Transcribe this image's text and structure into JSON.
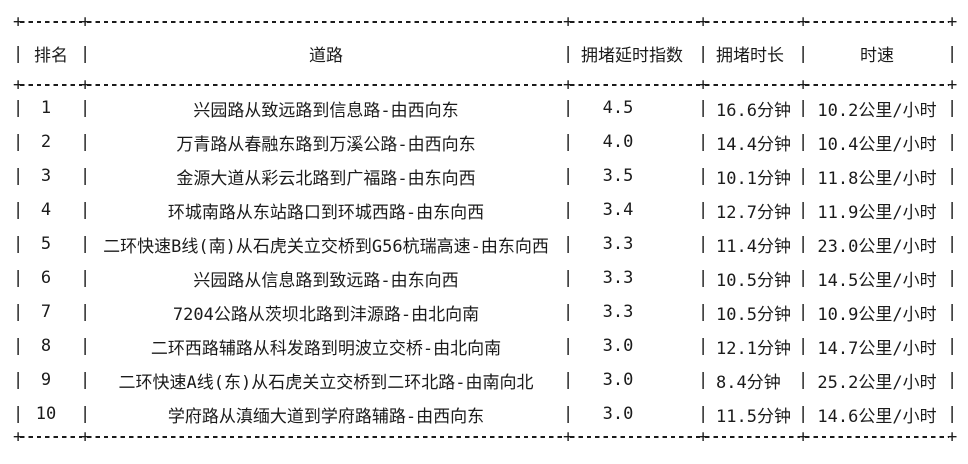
{
  "decor": {
    "vertical": "|",
    "junction": "+",
    "horizontal": "-"
  },
  "chart_data": {
    "type": "table",
    "columns": [
      "排名",
      "道路",
      "拥堵延时指数",
      "拥堵时长",
      "时速"
    ],
    "rows": [
      {
        "rank": "1",
        "road": "兴园路从致远路到信息路-由西向东",
        "index": "4.5",
        "duration": "16.6分钟",
        "speed": "10.2公里/小时"
      },
      {
        "rank": "2",
        "road": "万青路从春融东路到万溪公路-由西向东",
        "index": "4.0",
        "duration": "14.4分钟",
        "speed": "10.4公里/小时"
      },
      {
        "rank": "3",
        "road": "金源大道从彩云北路到广福路-由东向西",
        "index": "3.5",
        "duration": "10.1分钟",
        "speed": "11.8公里/小时"
      },
      {
        "rank": "4",
        "road": "环城南路从东站路口到环城西路-由东向西",
        "index": "3.4",
        "duration": "12.7分钟",
        "speed": "11.9公里/小时"
      },
      {
        "rank": "5",
        "road": "二环快速B线(南)从石虎关立交桥到G56杭瑞高速-由东向西",
        "index": "3.3",
        "duration": "11.4分钟",
        "speed": "23.0公里/小时"
      },
      {
        "rank": "6",
        "road": "兴园路从信息路到致远路-由东向西",
        "index": "3.3",
        "duration": "10.5分钟",
        "speed": "14.5公里/小时"
      },
      {
        "rank": "7",
        "road": "7204公路从茨坝北路到沣源路-由北向南",
        "index": "3.3",
        "duration": "10.5分钟",
        "speed": "10.9公里/小时"
      },
      {
        "rank": "8",
        "road": "二环西路辅路从科发路到明波立交桥-由北向南",
        "index": "3.0",
        "duration": "12.1分钟",
        "speed": "14.7公里/小时"
      },
      {
        "rank": "9",
        "road": "二环快速A线(东)从石虎关立交桥到二环北路-由南向北",
        "index": "3.0",
        "duration": "8.4分钟",
        "speed": "25.2公里/小时"
      },
      {
        "rank": "10",
        "road": "学府路从滇缅大道到学府路辅路-由西向东",
        "index": "3.0",
        "duration": "11.5分钟",
        "speed": "14.6公里/小时"
      }
    ]
  }
}
